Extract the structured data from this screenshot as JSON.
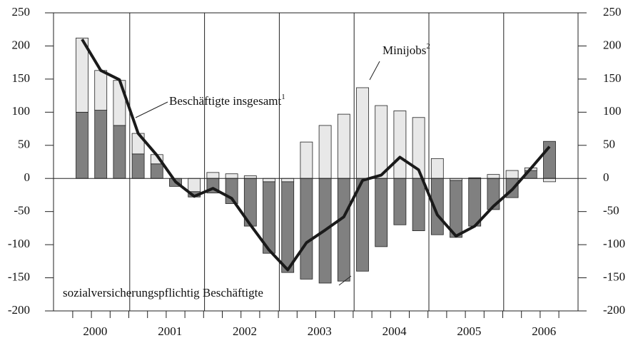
{
  "chart_data": {
    "type": "bar_line",
    "categories": [
      null,
      null,
      null,
      null,
      null,
      null,
      null,
      null,
      null,
      null,
      null,
      null,
      null,
      null,
      null,
      null,
      null,
      null,
      null,
      null,
      null,
      null,
      null,
      null,
      null,
      null
    ],
    "years": [
      "2000",
      "2001",
      "2002",
      "2003",
      "2004",
      "2005",
      "2006"
    ],
    "series": [
      {
        "name": "sozialversicherungspflichtig Beschäftigte",
        "color": "#808080",
        "kind": "bar",
        "values": [
          100,
          103,
          80,
          37,
          22,
          -12,
          -8,
          -22,
          -38,
          -72,
          -108,
          -137,
          -152,
          -158,
          -155,
          -140,
          -103,
          -70,
          -79,
          -85,
          -86,
          -72,
          -47,
          -29,
          12,
          56
        ]
      },
      {
        "name": "Minijobs",
        "footnote": "2",
        "color": "#e8e8e8",
        "kind": "bar",
        "values": [
          112,
          60,
          68,
          31,
          14,
          0,
          -20,
          9,
          7,
          4,
          -5,
          -5,
          55,
          80,
          97,
          137,
          110,
          102,
          92,
          30,
          -3,
          1,
          6,
          12,
          4,
          -5
        ]
      },
      {
        "name": "Beschäftigte insgesamt",
        "footnote": "1",
        "color": "#1a1a1a",
        "kind": "line",
        "values": [
          210,
          163,
          149,
          68,
          35,
          -5,
          -27,
          -15,
          -30,
          -70,
          -108,
          -138,
          -97,
          -78,
          -58,
          -3,
          5,
          32,
          13,
          -55,
          -87,
          -72,
          -42,
          -17,
          15,
          48
        ]
      }
    ],
    "ylim": [
      -200,
      250
    ],
    "yticks": [
      -200,
      -150,
      -100,
      -50,
      0,
      50,
      100,
      150,
      200,
      250
    ],
    "y2lim": [
      -200,
      250
    ],
    "y2ticks": [
      -200,
      -150,
      -100,
      -50,
      0,
      50,
      100,
      150,
      200,
      250
    ]
  }
}
